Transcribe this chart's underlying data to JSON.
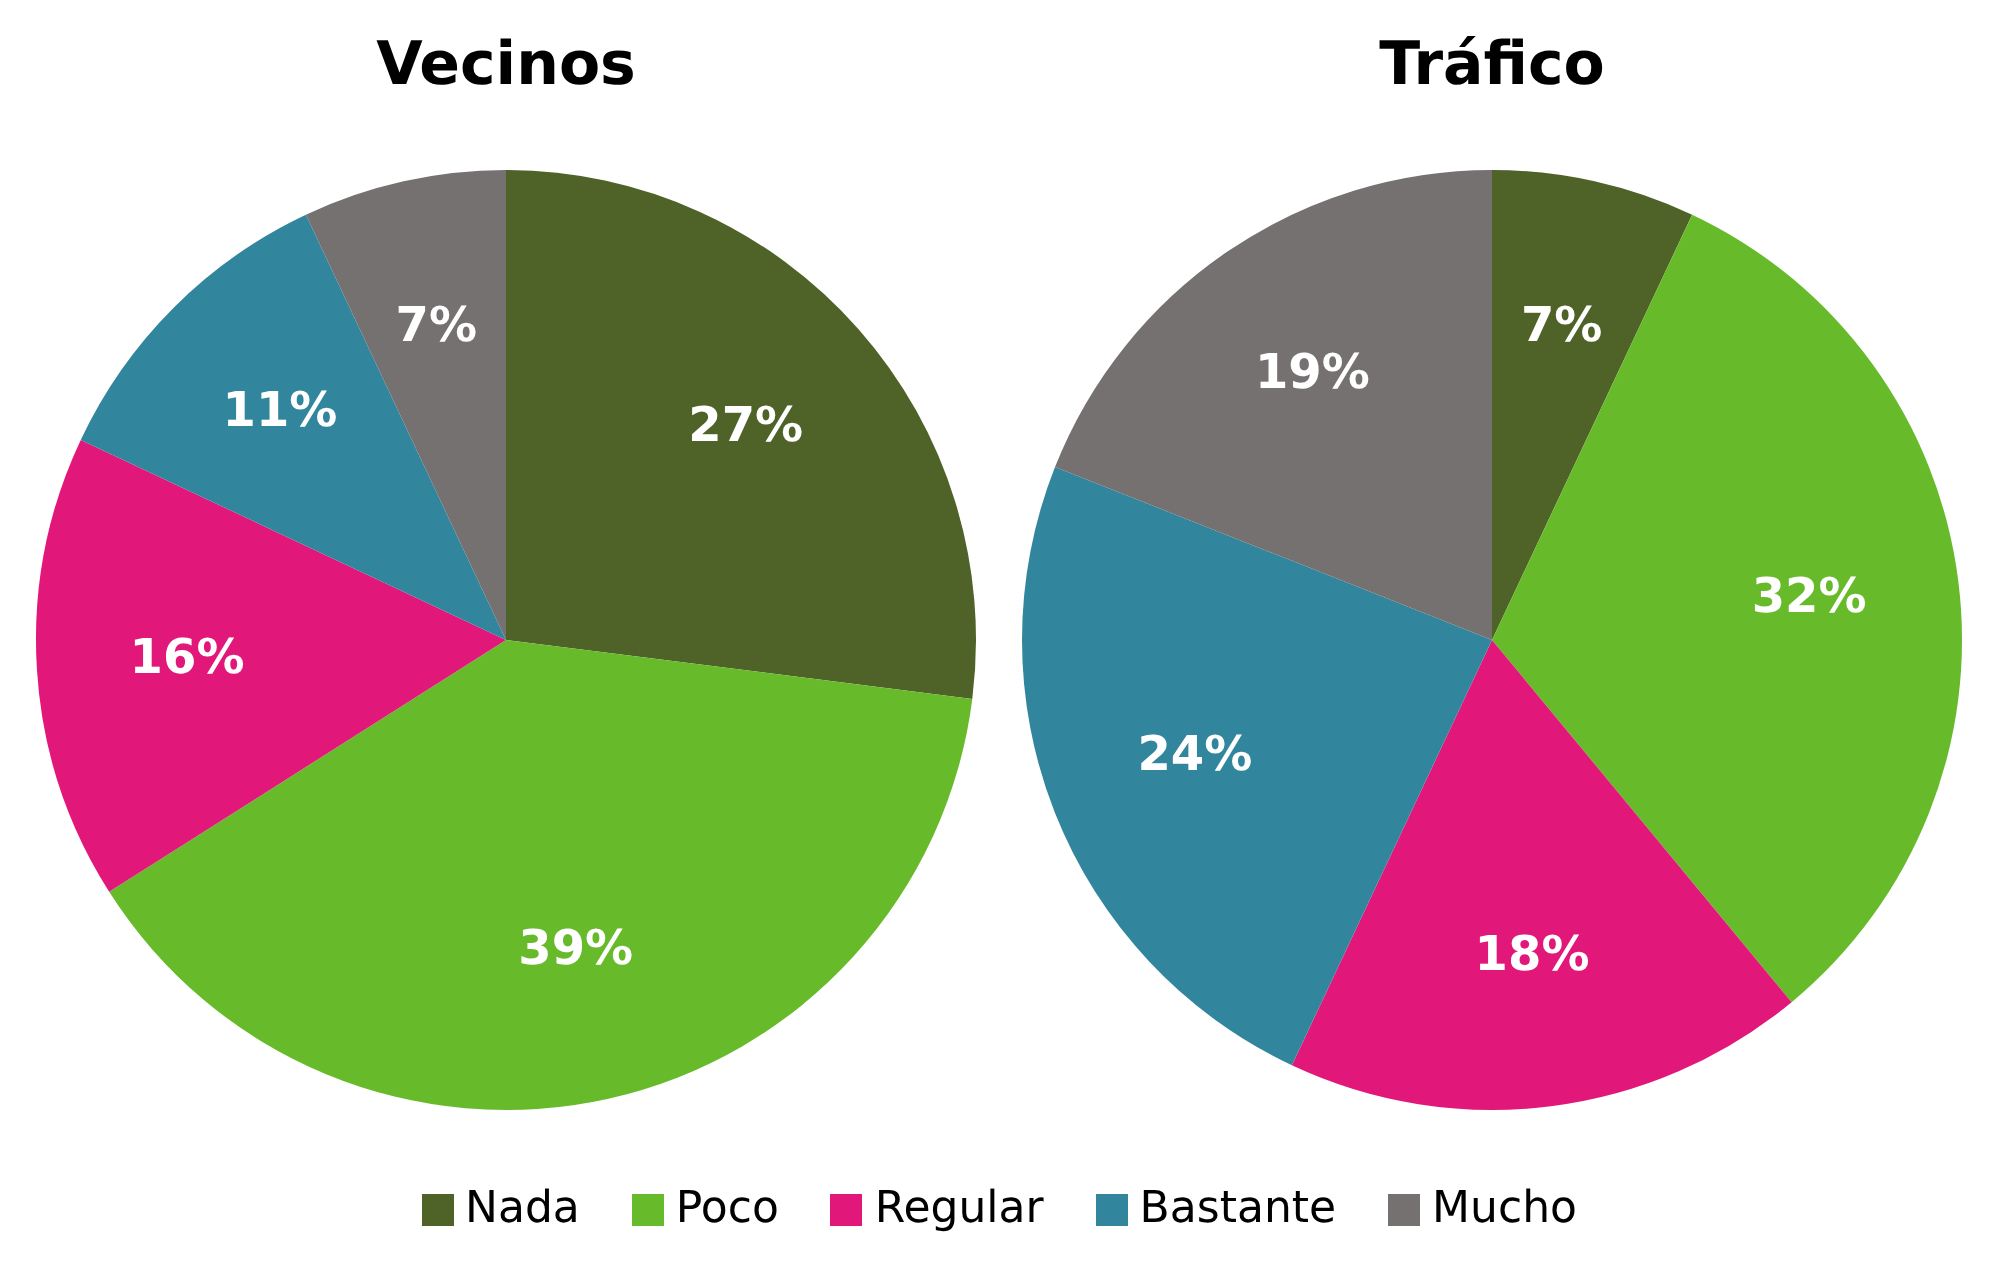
{
  "chart_data": [
    {
      "type": "pie",
      "title": "Vecinos",
      "categories": [
        "Nada",
        "Poco",
        "Regular",
        "Bastante",
        "Mucho"
      ],
      "values": [
        27,
        39,
        16,
        11,
        7
      ],
      "value_labels": [
        "27%",
        "39%",
        "16%",
        "11%",
        "7%"
      ],
      "colors": [
        "#4f6228",
        "#67bb2a",
        "#e2177a",
        "#31859c",
        "#767171"
      ],
      "legend": "bottom"
    },
    {
      "type": "pie",
      "title": "Tráfico",
      "categories": [
        null,
        null,
        null,
        null,
        null
      ],
      "values": [
        7,
        32,
        18,
        24,
        19
      ],
      "value_labels": [
        "7%",
        "32%",
        "18%",
        "24%",
        "19%"
      ],
      "colors": [
        "#4f6228",
        "#67bb2a",
        "#e2177a",
        "#31859c",
        "#767171"
      ]
    }
  ]
}
